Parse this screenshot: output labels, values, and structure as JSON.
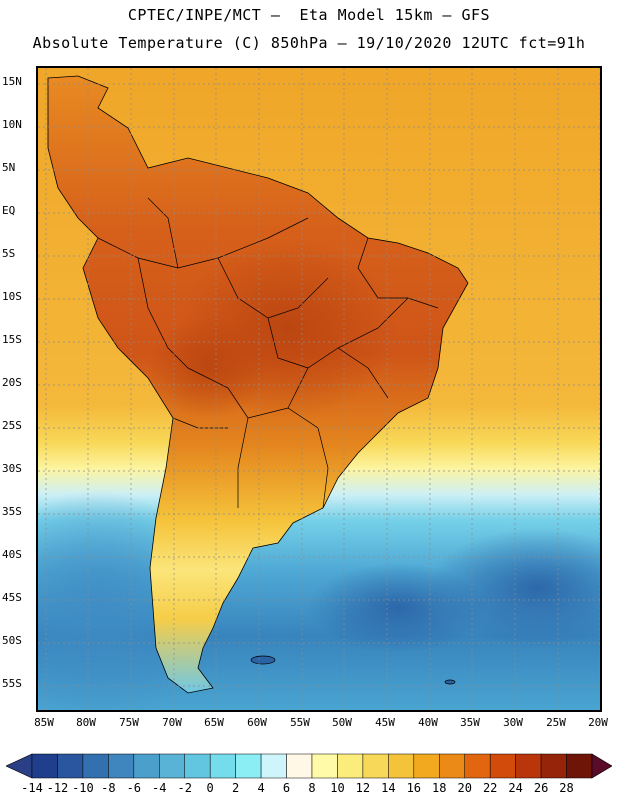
{
  "header": {
    "line1": "CPTEC/INPE/MCT –  Eta Model 15km – GFS",
    "line2": "Absolute Temperature (C) 850hPa – 19/10/2020 12UTC fct=91h"
  },
  "map": {
    "lat_labels": [
      "15N",
      "10N",
      "5N",
      "EQ",
      "5S",
      "10S",
      "15S",
      "20S",
      "25S",
      "30S",
      "35S",
      "40S",
      "45S",
      "50S",
      "55S"
    ],
    "lon_labels": [
      "85W",
      "80W",
      "75W",
      "70W",
      "65W",
      "60W",
      "55W",
      "50W",
      "45W",
      "40W",
      "35W",
      "30W",
      "25W",
      "20W"
    ]
  },
  "colorbar": {
    "labels": [
      "-14",
      "-12",
      "-10",
      "-8",
      "-6",
      "-4",
      "-2",
      "0",
      "2",
      "4",
      "6",
      "8",
      "10",
      "12",
      "14",
      "16",
      "18",
      "20",
      "22",
      "24",
      "26",
      "28"
    ],
    "colors": [
      "#1f3f8c",
      "#2a56a0",
      "#3370b0",
      "#3f86bf",
      "#4b9fcb",
      "#58b3d6",
      "#63c6e1",
      "#75dcec",
      "#8aeef4",
      "#cdf5fb",
      "#fff8e6",
      "#fffaa8",
      "#fcec7c",
      "#f8d858",
      "#f5c33a",
      "#f2a91f",
      "#ec8a17",
      "#e2650f",
      "#d24b0a",
      "#b8360a",
      "#962409",
      "#6e1508"
    ],
    "low_arrow_color": "#2b3f86",
    "high_arrow_color": "#5a0b2a"
  },
  "colors": {
    "land_warm": "#dd6e1e",
    "land_hot": "#c8511a",
    "ocean_warm": "#f2a522",
    "ocean_cool": "#49a9d2",
    "ocean_cold": "#2c6fae",
    "border": "#000000",
    "grid": "#8c8c8c"
  }
}
